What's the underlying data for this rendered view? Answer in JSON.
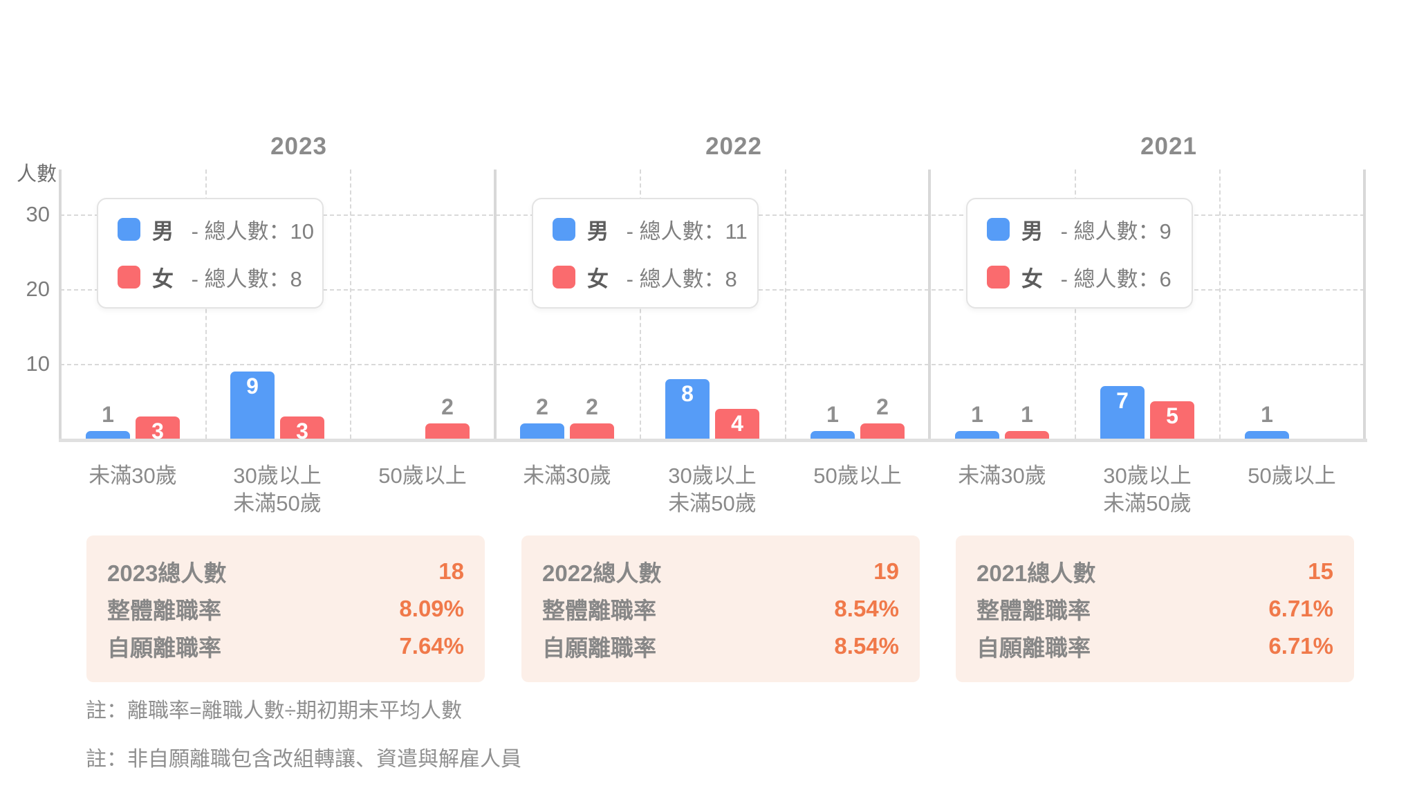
{
  "chart_data": {
    "type": "bar",
    "title": "",
    "ylabel": "人數",
    "xlabel": "",
    "yticks": [
      10,
      20,
      30
    ],
    "ylim": [
      0,
      36
    ],
    "grid": true,
    "legend_position": "top-left-inside",
    "categories": [
      "未滿30歲",
      "30歲以上 未滿50歲",
      "50歲以上"
    ],
    "category_lines": [
      [
        "未滿30歲"
      ],
      [
        "30歲以上",
        "未滿50歲"
      ],
      [
        "50歲以上"
      ]
    ],
    "series_names": [
      "男",
      "女"
    ],
    "colors": {
      "male": "#569cf7",
      "female": "#fa6b6e"
    },
    "panels": [
      {
        "title": "2023",
        "legend": [
          {
            "name": "男",
            "suffix": " - 總人數：10"
          },
          {
            "name": "女",
            "suffix": " - 總人數：8"
          }
        ],
        "series": [
          {
            "name": "男",
            "values": [
              1,
              9,
              0
            ]
          },
          {
            "name": "女",
            "values": [
              3,
              3,
              2
            ]
          }
        ],
        "summary": [
          {
            "label": "2023總人數",
            "value": "18"
          },
          {
            "label": "整體離職率",
            "value": "8.09%"
          },
          {
            "label": "自願離職率",
            "value": "7.64%"
          }
        ]
      },
      {
        "title": "2022",
        "legend": [
          {
            "name": "男",
            "suffix": " - 總人數：11"
          },
          {
            "name": "女",
            "suffix": " - 總人數：8"
          }
        ],
        "series": [
          {
            "name": "男",
            "values": [
              2,
              8,
              1
            ]
          },
          {
            "name": "女",
            "values": [
              2,
              4,
              2
            ]
          }
        ],
        "summary": [
          {
            "label": "2022總人數",
            "value": "19"
          },
          {
            "label": "整體離職率",
            "value": "8.54%"
          },
          {
            "label": "自願離職率",
            "value": "8.54%"
          }
        ]
      },
      {
        "title": "2021",
        "legend": [
          {
            "name": "男",
            "suffix": " - 總人數：9"
          },
          {
            "name": "女",
            "suffix": " - 總人數：6"
          }
        ],
        "series": [
          {
            "name": "男",
            "values": [
              1,
              7,
              1
            ]
          },
          {
            "name": "女",
            "values": [
              1,
              5,
              0
            ]
          }
        ],
        "summary": [
          {
            "label": "2021總人數",
            "value": "15"
          },
          {
            "label": "整體離職率",
            "value": "6.71%"
          },
          {
            "label": "自願離職率",
            "value": "6.71%"
          }
        ]
      }
    ]
  },
  "notes": [
    "註：離職率=離職人數÷期初期末平均人數",
    "註：非自願離職包含改組轉讓、資遣與解雇人員"
  ],
  "styles": {
    "value_orange": "#f0794a",
    "summary_bg": "#fcefe8",
    "label_inside_color": "#ffffff",
    "label_above_color": "#8f8f8f"
  }
}
